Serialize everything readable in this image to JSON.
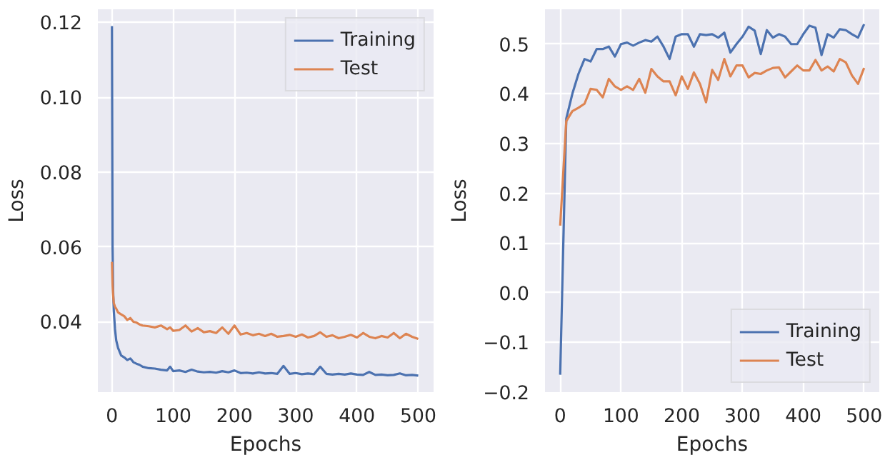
{
  "chart_data": [
    {
      "type": "line",
      "xlabel": "Epochs",
      "ylabel": "Loss",
      "grid": true,
      "legend": "top right",
      "x": [
        0,
        1,
        2,
        3,
        5,
        7,
        10,
        15,
        20,
        25,
        30,
        35,
        40,
        45,
        50,
        60,
        70,
        80,
        90,
        95,
        100,
        110,
        120,
        130,
        140,
        150,
        160,
        170,
        180,
        190,
        200,
        210,
        220,
        230,
        240,
        250,
        260,
        270,
        280,
        290,
        300,
        310,
        320,
        330,
        340,
        350,
        360,
        370,
        380,
        390,
        400,
        410,
        420,
        430,
        440,
        450,
        460,
        470,
        480,
        490,
        500
      ],
      "series": [
        {
          "name": "Training",
          "color": "#4c72b0",
          "values": [
            0.119,
            0.06,
            0.048,
            0.043,
            0.038,
            0.035,
            0.033,
            0.031,
            0.0305,
            0.0298,
            0.0302,
            0.0292,
            0.0288,
            0.0285,
            0.028,
            0.0276,
            0.0275,
            0.0272,
            0.027,
            0.028,
            0.0268,
            0.027,
            0.0266,
            0.0272,
            0.0267,
            0.0265,
            0.0266,
            0.0264,
            0.0268,
            0.0265,
            0.027,
            0.0263,
            0.0264,
            0.0262,
            0.0265,
            0.0262,
            0.0263,
            0.0261,
            0.0282,
            0.0261,
            0.0263,
            0.026,
            0.0262,
            0.026,
            0.028,
            0.0261,
            0.0259,
            0.0261,
            0.0259,
            0.0262,
            0.0259,
            0.0258,
            0.0266,
            0.0258,
            0.0259,
            0.0257,
            0.0258,
            0.0262,
            0.0257,
            0.0258,
            0.0256
          ]
        },
        {
          "name": "Test",
          "color": "#dd8452",
          "values": [
            0.056,
            0.05,
            0.047,
            0.045,
            0.044,
            0.0435,
            0.0425,
            0.042,
            0.0415,
            0.0405,
            0.041,
            0.04,
            0.0398,
            0.0393,
            0.039,
            0.0388,
            0.0385,
            0.039,
            0.038,
            0.0385,
            0.0376,
            0.0378,
            0.039,
            0.0374,
            0.0383,
            0.0372,
            0.0375,
            0.037,
            0.0385,
            0.0368,
            0.039,
            0.0366,
            0.037,
            0.0364,
            0.0368,
            0.0362,
            0.0368,
            0.036,
            0.0362,
            0.0365,
            0.036,
            0.0366,
            0.0358,
            0.0362,
            0.0372,
            0.036,
            0.0364,
            0.0356,
            0.036,
            0.0365,
            0.0358,
            0.037,
            0.036,
            0.0356,
            0.0362,
            0.0358,
            0.037,
            0.0356,
            0.0368,
            0.036,
            0.0354
          ]
        }
      ],
      "xlim": [
        -23,
        525
      ],
      "xticks": [
        0,
        100,
        200,
        300,
        400,
        500
      ],
      "ylim": [
        0.0212,
        0.1235
      ],
      "yticks": [
        {
          "value": 0.04,
          "label": "0.04"
        },
        {
          "value": 0.06,
          "label": "0.06"
        },
        {
          "value": 0.08,
          "label": "0.08"
        },
        {
          "value": 0.1,
          "label": "0.10"
        },
        {
          "value": 0.12,
          "label": "0.12"
        }
      ]
    },
    {
      "type": "line",
      "xlabel": "Epochs",
      "ylabel": "Loss",
      "grid": true,
      "legend": "bottom right",
      "x": [
        0,
        10,
        20,
        30,
        40,
        50,
        60,
        70,
        80,
        90,
        100,
        110,
        120,
        130,
        140,
        150,
        160,
        170,
        180,
        190,
        200,
        210,
        220,
        230,
        240,
        250,
        260,
        270,
        280,
        290,
        300,
        310,
        320,
        330,
        340,
        350,
        360,
        370,
        380,
        390,
        400,
        410,
        420,
        430,
        440,
        450,
        460,
        470,
        480,
        490,
        500
      ],
      "series": [
        {
          "name": "Training",
          "color": "#4c72b0",
          "values": [
            -0.165,
            0.35,
            0.4,
            0.44,
            0.47,
            0.465,
            0.49,
            0.49,
            0.495,
            0.475,
            0.5,
            0.503,
            0.497,
            0.503,
            0.508,
            0.505,
            0.515,
            0.495,
            0.47,
            0.515,
            0.52,
            0.52,
            0.495,
            0.52,
            0.518,
            0.52,
            0.513,
            0.523,
            0.483,
            0.5,
            0.515,
            0.535,
            0.527,
            0.48,
            0.528,
            0.513,
            0.52,
            0.515,
            0.5,
            0.5,
            0.52,
            0.537,
            0.533,
            0.478,
            0.52,
            0.513,
            0.53,
            0.528,
            0.52,
            0.513,
            0.54
          ]
        },
        {
          "name": "Test",
          "color": "#dd8452",
          "values": [
            0.135,
            0.345,
            0.365,
            0.372,
            0.38,
            0.41,
            0.408,
            0.393,
            0.43,
            0.415,
            0.408,
            0.415,
            0.408,
            0.43,
            0.402,
            0.45,
            0.435,
            0.425,
            0.425,
            0.397,
            0.435,
            0.41,
            0.443,
            0.42,
            0.383,
            0.448,
            0.428,
            0.47,
            0.435,
            0.457,
            0.457,
            0.433,
            0.442,
            0.44,
            0.447,
            0.452,
            0.453,
            0.433,
            0.445,
            0.457,
            0.447,
            0.447,
            0.468,
            0.447,
            0.455,
            0.445,
            0.47,
            0.463,
            0.437,
            0.42,
            0.452
          ]
        }
      ],
      "xlim": [
        -25,
        525
      ],
      "xticks": [
        0,
        100,
        200,
        300,
        400,
        500
      ],
      "ylim": [
        -0.2,
        0.57
      ],
      "yticks": [
        {
          "value": -0.2,
          "label": "−0.2"
        },
        {
          "value": -0.1,
          "label": "−0.1"
        },
        {
          "value": 0.0,
          "label": "0.0"
        },
        {
          "value": 0.1,
          "label": "0.1"
        },
        {
          "value": 0.2,
          "label": "0.2"
        },
        {
          "value": 0.3,
          "label": "0.3"
        },
        {
          "value": 0.4,
          "label": "0.4"
        },
        {
          "value": 0.5,
          "label": "0.5"
        }
      ]
    }
  ]
}
